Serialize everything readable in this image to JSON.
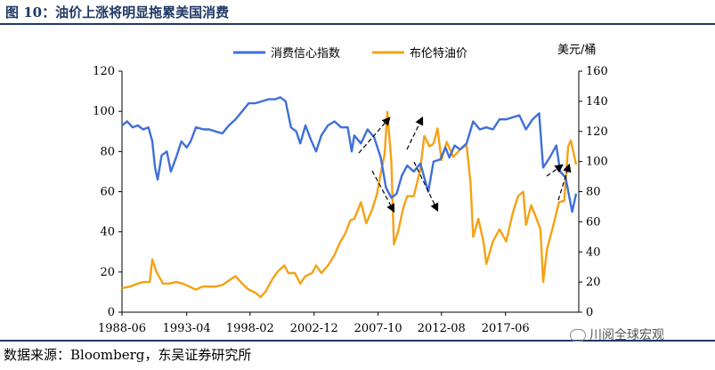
{
  "figure": {
    "title": "图 10：油价上涨将明显拖累美国消费",
    "source": "数据来源：Bloomberg，东吴证券研究所",
    "watermark": "川阅全球宏观"
  },
  "chart_data": {
    "type": "line",
    "title": "",
    "xlabel": "",
    "x_ticks": [
      "1988-06",
      "1993-04",
      "1998-02",
      "2002-12",
      "2007-10",
      "2012-08",
      "2017-06"
    ],
    "x_range": [
      1988.4,
      2023.0
    ],
    "left_axis": {
      "label": "",
      "ylim": [
        0,
        120
      ],
      "ticks": [
        0,
        20,
        40,
        60,
        80,
        100,
        120
      ]
    },
    "right_axis": {
      "label": "美元/桶",
      "ylim": [
        0,
        160
      ],
      "ticks": [
        0,
        20,
        40,
        60,
        80,
        100,
        120,
        140,
        160
      ]
    },
    "legend_position": "top-center",
    "grid": false,
    "series": [
      {
        "name": "消费信心指数",
        "axis": "left",
        "color": "#3f6fd8",
        "points": [
          [
            1988.4,
            93
          ],
          [
            1988.8,
            95
          ],
          [
            1989.2,
            92
          ],
          [
            1989.6,
            93
          ],
          [
            1990.0,
            91
          ],
          [
            1990.4,
            92
          ],
          [
            1990.7,
            85
          ],
          [
            1990.9,
            72
          ],
          [
            1991.1,
            66
          ],
          [
            1991.4,
            78
          ],
          [
            1991.8,
            80
          ],
          [
            1992.1,
            70
          ],
          [
            1992.5,
            77
          ],
          [
            1992.9,
            85
          ],
          [
            1993.3,
            82
          ],
          [
            1993.6,
            85
          ],
          [
            1994.0,
            92
          ],
          [
            1994.6,
            91
          ],
          [
            1995.0,
            91
          ],
          [
            1995.5,
            90
          ],
          [
            1996.0,
            89
          ],
          [
            1996.5,
            93
          ],
          [
            1997.0,
            96
          ],
          [
            1997.5,
            100
          ],
          [
            1998.0,
            104
          ],
          [
            1998.5,
            104
          ],
          [
            1999.0,
            105
          ],
          [
            1999.5,
            106
          ],
          [
            2000.0,
            106
          ],
          [
            2000.4,
            107
          ],
          [
            2000.8,
            105
          ],
          [
            2001.2,
            92
          ],
          [
            2001.6,
            90
          ],
          [
            2001.9,
            84
          ],
          [
            2002.3,
            93
          ],
          [
            2002.7,
            86
          ],
          [
            2003.1,
            80
          ],
          [
            2003.5,
            88
          ],
          [
            2004.0,
            93
          ],
          [
            2004.5,
            95
          ],
          [
            2005.0,
            92
          ],
          [
            2005.5,
            92
          ],
          [
            2005.8,
            80
          ],
          [
            2006.0,
            88
          ],
          [
            2006.5,
            84
          ],
          [
            2007.0,
            91
          ],
          [
            2007.5,
            87
          ],
          [
            2008.0,
            77
          ],
          [
            2008.4,
            62
          ],
          [
            2008.8,
            57
          ],
          [
            2009.2,
            59
          ],
          [
            2009.6,
            68
          ],
          [
            2010.0,
            73
          ],
          [
            2010.5,
            70
          ],
          [
            2011.0,
            74
          ],
          [
            2011.6,
            60
          ],
          [
            2012.0,
            75
          ],
          [
            2012.5,
            76
          ],
          [
            2012.9,
            82
          ],
          [
            2013.2,
            77
          ],
          [
            2013.6,
            83
          ],
          [
            2014.0,
            81
          ],
          [
            2014.5,
            84
          ],
          [
            2015.0,
            95
          ],
          [
            2015.5,
            91
          ],
          [
            2016.0,
            92
          ],
          [
            2016.5,
            91
          ],
          [
            2017.0,
            96
          ],
          [
            2017.5,
            96
          ],
          [
            2018.0,
            97
          ],
          [
            2018.5,
            98
          ],
          [
            2019.0,
            91
          ],
          [
            2019.5,
            96
          ],
          [
            2020.0,
            99
          ],
          [
            2020.3,
            72
          ],
          [
            2020.8,
            77
          ],
          [
            2021.3,
            83
          ],
          [
            2021.6,
            70
          ],
          [
            2022.0,
            67
          ],
          [
            2022.5,
            50
          ],
          [
            2022.8,
            59
          ]
        ]
      },
      {
        "name": "布伦特油价",
        "axis": "right",
        "color": "#f5a214",
        "points": [
          [
            1988.4,
            16
          ],
          [
            1989.0,
            17
          ],
          [
            1989.6,
            19
          ],
          [
            1990.0,
            20
          ],
          [
            1990.5,
            20
          ],
          [
            1990.7,
            35
          ],
          [
            1991.0,
            27
          ],
          [
            1991.5,
            19
          ],
          [
            1992.0,
            19
          ],
          [
            1992.5,
            20
          ],
          [
            1993.0,
            19
          ],
          [
            1993.5,
            17
          ],
          [
            1994.0,
            15
          ],
          [
            1994.5,
            17
          ],
          [
            1995.0,
            17
          ],
          [
            1995.5,
            17
          ],
          [
            1996.0,
            18
          ],
          [
            1996.5,
            21
          ],
          [
            1997.0,
            24
          ],
          [
            1997.5,
            19
          ],
          [
            1998.0,
            15
          ],
          [
            1998.5,
            13
          ],
          [
            1998.9,
            10
          ],
          [
            1999.3,
            14
          ],
          [
            1999.8,
            22
          ],
          [
            2000.2,
            27
          ],
          [
            2000.7,
            31
          ],
          [
            2001.0,
            26
          ],
          [
            2001.5,
            26
          ],
          [
            2001.9,
            19
          ],
          [
            2002.3,
            24
          ],
          [
            2002.8,
            26
          ],
          [
            2003.1,
            31
          ],
          [
            2003.5,
            26
          ],
          [
            2004.0,
            31
          ],
          [
            2004.5,
            38
          ],
          [
            2004.9,
            46
          ],
          [
            2005.3,
            52
          ],
          [
            2005.7,
            61
          ],
          [
            2006.0,
            62
          ],
          [
            2006.5,
            73
          ],
          [
            2006.9,
            59
          ],
          [
            2007.3,
            67
          ],
          [
            2007.7,
            78
          ],
          [
            2008.0,
            92
          ],
          [
            2008.3,
            105
          ],
          [
            2008.5,
            133
          ],
          [
            2008.8,
            100
          ],
          [
            2009.0,
            45
          ],
          [
            2009.3,
            53
          ],
          [
            2009.7,
            69
          ],
          [
            2010.0,
            77
          ],
          [
            2010.5,
            77
          ],
          [
            2011.0,
            95
          ],
          [
            2011.3,
            117
          ],
          [
            2011.7,
            110
          ],
          [
            2012.0,
            112
          ],
          [
            2012.3,
            122
          ],
          [
            2012.6,
            101
          ],
          [
            2013.0,
            113
          ],
          [
            2013.5,
            103
          ],
          [
            2014.0,
            108
          ],
          [
            2014.5,
            111
          ],
          [
            2014.8,
            86
          ],
          [
            2015.0,
            50
          ],
          [
            2015.4,
            62
          ],
          [
            2015.8,
            46
          ],
          [
            2016.0,
            32
          ],
          [
            2016.5,
            47
          ],
          [
            2017.0,
            55
          ],
          [
            2017.5,
            47
          ],
          [
            2018.0,
            66
          ],
          [
            2018.4,
            77
          ],
          [
            2018.8,
            80
          ],
          [
            2019.0,
            58
          ],
          [
            2019.4,
            71
          ],
          [
            2019.8,
            62
          ],
          [
            2020.1,
            55
          ],
          [
            2020.3,
            20
          ],
          [
            2020.6,
            42
          ],
          [
            2021.0,
            55
          ],
          [
            2021.5,
            73
          ],
          [
            2021.9,
            74
          ],
          [
            2022.2,
            110
          ],
          [
            2022.4,
            114
          ],
          [
            2022.8,
            98
          ]
        ]
      }
    ],
    "annotations": "dashed arrows near 2007-2012 and 2021 showing inverse movement"
  }
}
